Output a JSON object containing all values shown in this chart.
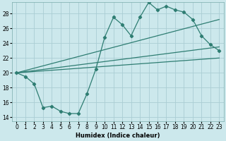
{
  "xlabel": "Humidex (Indice chaleur)",
  "background_color": "#cce8ec",
  "grid_color": "#aacdd4",
  "line_color": "#2e7d72",
  "xlim": [
    -0.5,
    23.5
  ],
  "ylim": [
    13.5,
    29.5
  ],
  "xticks": [
    0,
    1,
    2,
    3,
    4,
    5,
    6,
    7,
    8,
    9,
    10,
    11,
    12,
    13,
    14,
    15,
    16,
    17,
    18,
    19,
    20,
    21,
    22,
    23
  ],
  "yticks": [
    14,
    16,
    18,
    20,
    22,
    24,
    26,
    28
  ],
  "main_x": [
    0,
    1,
    2,
    3,
    4,
    5,
    6,
    7,
    8,
    9,
    10,
    11,
    12,
    13,
    14,
    15,
    16,
    17,
    18,
    19,
    20,
    21,
    22,
    23
  ],
  "main_y": [
    20,
    19.5,
    18.5,
    15.3,
    15.5,
    14.8,
    14.5,
    14.5,
    17.2,
    20.5,
    24.8,
    27.5,
    26.5,
    25.0,
    27.5,
    29.5,
    28.5,
    29.0,
    28.5,
    28.2,
    27.2,
    25.0,
    23.8,
    23.0
  ],
  "ref_lines": [
    {
      "x": [
        0,
        23
      ],
      "y": [
        20.0,
        23.5
      ]
    },
    {
      "x": [
        0,
        23
      ],
      "y": [
        20.0,
        22.0
      ]
    },
    {
      "x": [
        0,
        23
      ],
      "y": [
        20.0,
        27.2
      ]
    }
  ]
}
